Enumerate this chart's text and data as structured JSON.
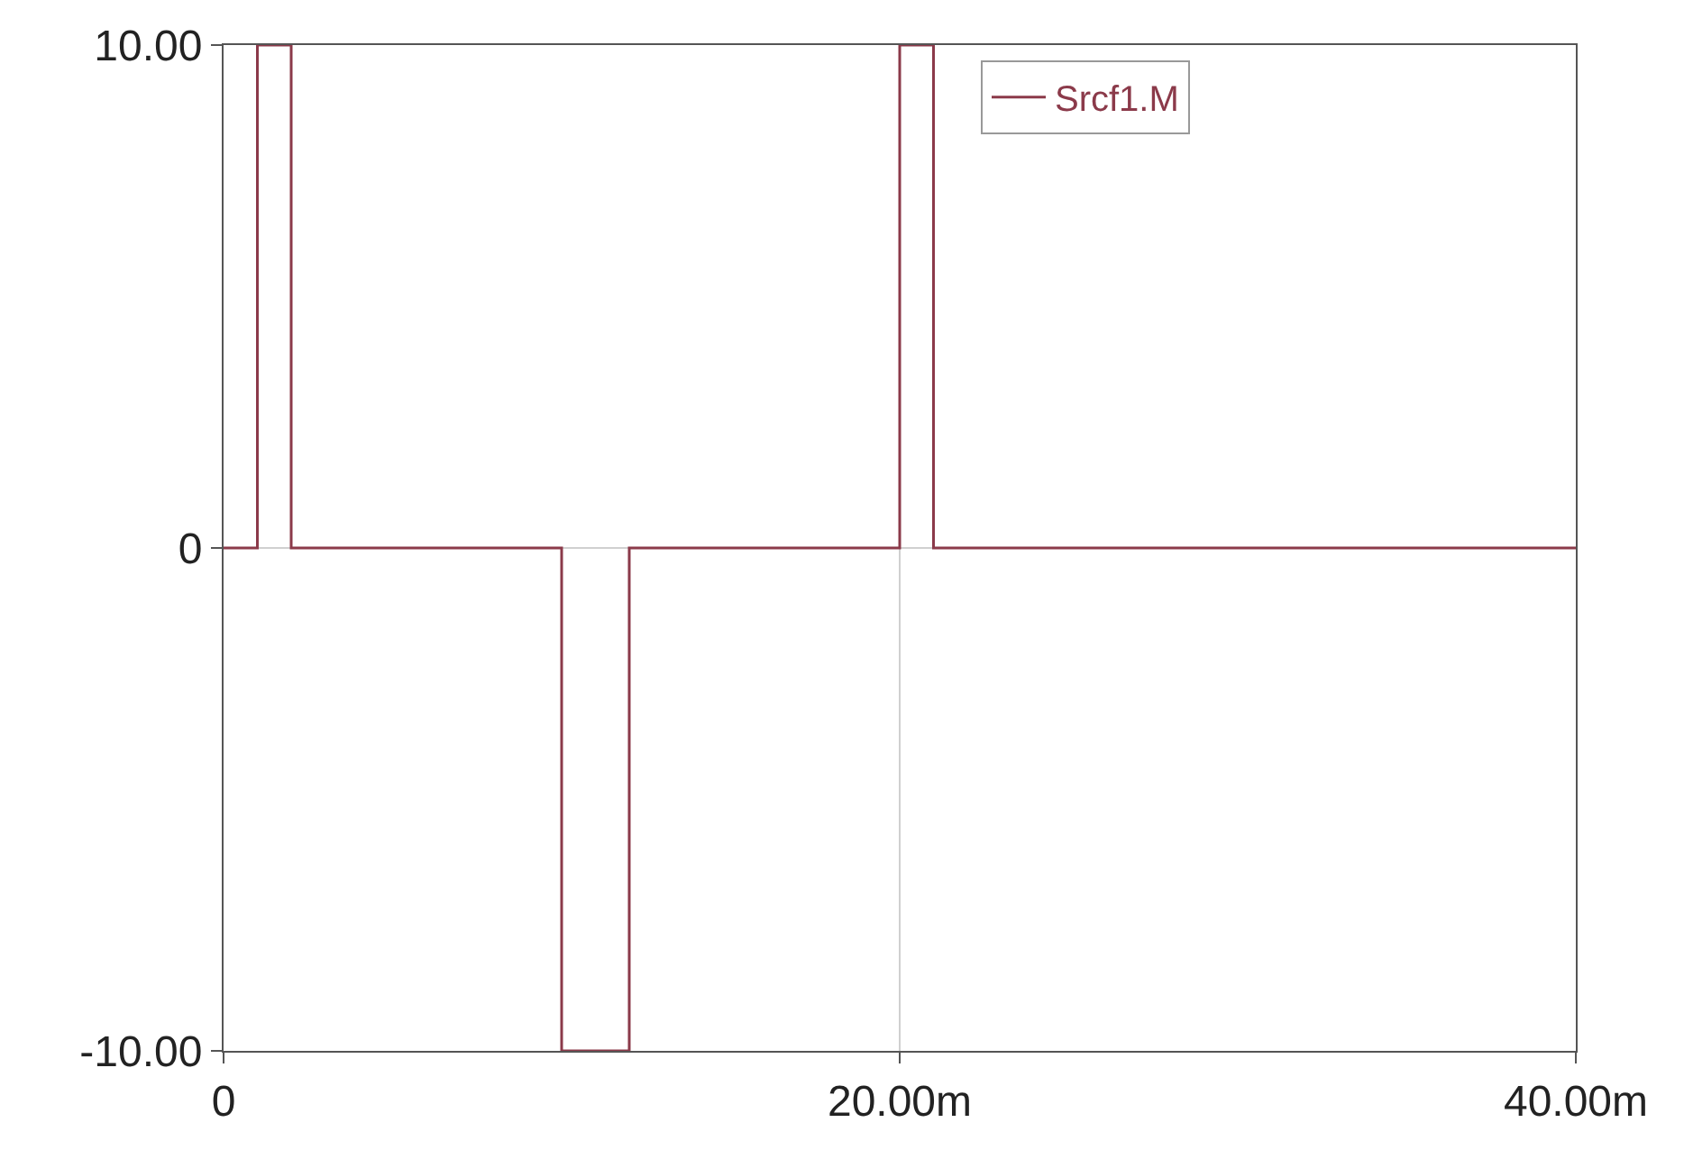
{
  "chart_data": {
    "type": "step",
    "x": [
      0,
      1,
      2,
      10,
      12,
      20,
      21,
      40
    ],
    "series": [
      {
        "name": "Srcf1.M",
        "color": "#8b3a4a",
        "values": [
          0,
          10,
          0,
          -10,
          0,
          10,
          0,
          0
        ]
      }
    ],
    "xlim": [
      0,
      40
    ],
    "xticks": [
      0,
      {
        "value": 20,
        "label": "20.00m"
      },
      {
        "value": 40,
        "label": "40.00m"
      }
    ],
    "ylim": [
      -10,
      10
    ],
    "yticks": [
      {
        "value": -10,
        "label": "-10.00"
      },
      0,
      {
        "value": 10,
        "label": "10.00"
      }
    ],
    "grid": true,
    "legend": "top right",
    "marker": "none",
    "line_style": "solid"
  }
}
